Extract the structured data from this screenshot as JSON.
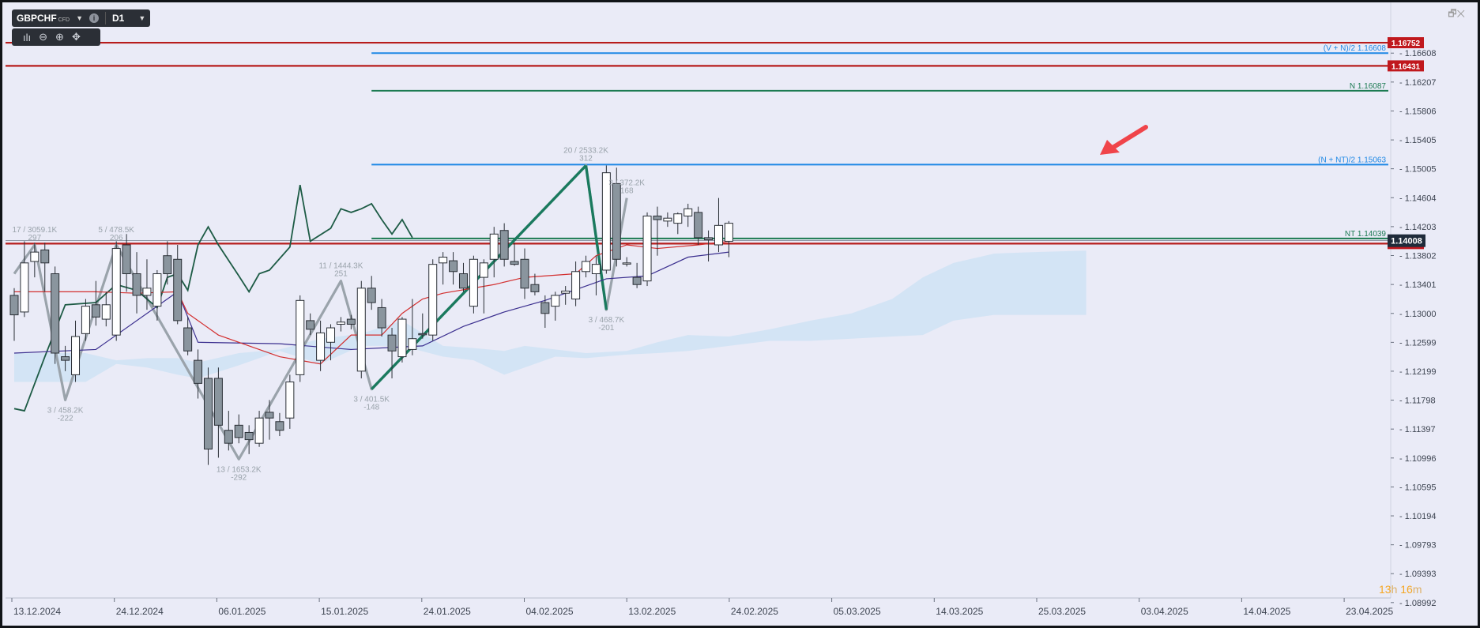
{
  "toolbar": {
    "symbol": "GBPCHF",
    "symbol_sub": "CFD",
    "timeframe": "D1",
    "icons": [
      "chevron-down-icon",
      "info-icon",
      "indicators-icon",
      "zoom-out-icon",
      "zoom-in-icon",
      "crosshair-icon"
    ]
  },
  "window_controls": {
    "icons": [
      "maximize-icon",
      "close-icon"
    ],
    "glyphs": "🗗✕"
  },
  "countdown": {
    "hours": "13",
    "h_unit": "h",
    "minutes": "16",
    "m_unit": "m"
  },
  "colors": {
    "background": "#eaebf7",
    "bull_candle": "#ffffff",
    "bear_candle": "#8a959e",
    "tenkan": "#d32f2f",
    "kijun": "#3b2f8f",
    "chikou": "#1d5b45",
    "zigzag": "#9aa3ab",
    "wave_green": "#1a7a5e",
    "red_level": "#b71c1c",
    "blue_level": "#1e88e5",
    "green_level": "#1b7a52"
  },
  "chart_data": {
    "type": "candlestick",
    "ylim": [
      1.0899,
      1.1695
    ],
    "ticks_y": [
      "1.16608",
      "1.16207",
      "1.15806",
      "1.15405",
      "1.15005",
      "1.14604",
      "1.14203",
      "1.13802",
      "1.13401",
      "1.13000",
      "1.12599",
      "1.12199",
      "1.11798",
      "1.11397",
      "1.10996",
      "1.10595",
      "1.10194",
      "1.09793",
      "1.09393",
      "1.08992"
    ],
    "ticks_x": [
      "13.12.2024",
      "24.12.2024",
      "06.01.2025",
      "15.01.2025",
      "24.01.2025",
      "04.02.2025",
      "13.02.2025",
      "24.02.2025",
      "05.03.2025",
      "14.03.2025",
      "25.03.2025",
      "03.04.2025",
      "14.04.2025",
      "23.04.2025"
    ],
    "candles": [
      [
        1.1325,
        1.1335,
        1.1262,
        1.1298
      ],
      [
        1.1302,
        1.14,
        1.1295,
        1.137
      ],
      [
        1.1372,
        1.1398,
        1.135,
        1.1385
      ],
      [
        1.1388,
        1.1398,
        1.133,
        1.137
      ],
      [
        1.1355,
        1.1365,
        1.123,
        1.1245
      ],
      [
        1.124,
        1.1255,
        1.122,
        1.1235
      ],
      [
        1.1215,
        1.129,
        1.1205,
        1.1268
      ],
      [
        1.1272,
        1.132,
        1.1262,
        1.131
      ],
      [
        1.1312,
        1.1345,
        1.1283,
        1.1295
      ],
      [
        1.1292,
        1.133,
        1.1282,
        1.1312
      ],
      [
        1.127,
        1.14,
        1.1262,
        1.139
      ],
      [
        1.1395,
        1.141,
        1.133,
        1.1355
      ],
      [
        1.1355,
        1.1385,
        1.13,
        1.1325
      ],
      [
        1.1325,
        1.1375,
        1.1305,
        1.1335
      ],
      [
        1.131,
        1.136,
        1.129,
        1.1355
      ],
      [
        1.138,
        1.14,
        1.134,
        1.1355
      ],
      [
        1.1375,
        1.1395,
        1.1285,
        1.129
      ],
      [
        1.128,
        1.1295,
        1.1242,
        1.1248
      ],
      [
        1.1235,
        1.125,
        1.1182,
        1.1203
      ],
      [
        1.121,
        1.1225,
        1.109,
        1.1112
      ],
      [
        1.121,
        1.1225,
        1.11,
        1.1145
      ],
      [
        1.1138,
        1.1165,
        1.111,
        1.112
      ],
      [
        1.1145,
        1.116,
        1.112,
        1.1128
      ],
      [
        1.1135,
        1.1145,
        1.1105,
        1.1125
      ],
      [
        1.112,
        1.1165,
        1.1115,
        1.1155
      ],
      [
        1.1163,
        1.118,
        1.1125,
        1.1155
      ],
      [
        1.115,
        1.1162,
        1.113,
        1.1138
      ],
      [
        1.1155,
        1.1215,
        1.114,
        1.1205
      ],
      [
        1.1215,
        1.1325,
        1.1205,
        1.1318
      ],
      [
        1.129,
        1.13,
        1.127,
        1.1278
      ],
      [
        1.1235,
        1.129,
        1.122,
        1.1273
      ],
      [
        1.126,
        1.1285,
        1.1235,
        1.128
      ],
      [
        1.1285,
        1.1295,
        1.1275,
        1.1288
      ],
      [
        1.1292,
        1.1298,
        1.1278,
        1.1285
      ],
      [
        1.122,
        1.1345,
        1.121,
        1.1335
      ],
      [
        1.1335,
        1.1352,
        1.1305,
        1.1315
      ],
      [
        1.1308,
        1.132,
        1.1268,
        1.128
      ],
      [
        1.127,
        1.128,
        1.121,
        1.1248
      ],
      [
        1.124,
        1.1295,
        1.1232,
        1.1292
      ],
      [
        1.125,
        1.132,
        1.1242,
        1.1265
      ],
      [
        1.1272,
        1.13,
        1.1265,
        1.1271
      ],
      [
        1.127,
        1.1375,
        1.1262,
        1.1368
      ],
      [
        1.137,
        1.1385,
        1.134,
        1.1378
      ],
      [
        1.1373,
        1.1385,
        1.134,
        1.1358
      ],
      [
        1.1355,
        1.137,
        1.133,
        1.1335
      ],
      [
        1.131,
        1.138,
        1.13,
        1.1375
      ],
      [
        1.135,
        1.1375,
        1.13,
        1.137
      ],
      [
        1.1375,
        1.142,
        1.135,
        1.141
      ],
      [
        1.1415,
        1.1425,
        1.1365,
        1.1375
      ],
      [
        1.1372,
        1.1398,
        1.1366,
        1.1368
      ],
      [
        1.1375,
        1.139,
        1.132,
        1.1335
      ],
      [
        1.134,
        1.1355,
        1.1325,
        1.133
      ],
      [
        1.1315,
        1.1325,
        1.128,
        1.13
      ],
      [
        1.131,
        1.133,
        1.129,
        1.1325
      ],
      [
        1.1328,
        1.1338,
        1.1312,
        1.1331
      ],
      [
        1.132,
        1.1372,
        1.131,
        1.1358
      ],
      [
        1.1358,
        1.138,
        1.135,
        1.1372
      ],
      [
        1.1355,
        1.138,
        1.1325,
        1.1368
      ],
      [
        1.136,
        1.1505,
        1.1355,
        1.1495
      ],
      [
        1.148,
        1.1502,
        1.1365,
        1.1375
      ],
      [
        1.137,
        1.1378,
        1.1365,
        1.137
      ],
      [
        1.135,
        1.137,
        1.1335,
        1.134
      ],
      [
        1.1345,
        1.144,
        1.1338,
        1.1435
      ],
      [
        1.1435,
        1.1448,
        1.138,
        1.143
      ],
      [
        1.1428,
        1.144,
        1.142,
        1.1432
      ],
      [
        1.1425,
        1.144,
        1.141,
        1.1438
      ],
      [
        1.1435,
        1.1452,
        1.142,
        1.1445
      ],
      [
        1.144,
        1.1448,
        1.1395,
        1.1405
      ],
      [
        1.1405,
        1.1415,
        1.1372,
        1.1402
      ],
      [
        1.1395,
        1.146,
        1.1385,
        1.1422
      ],
      [
        1.14,
        1.1428,
        1.1378,
        1.1425
      ]
    ],
    "tenkan": [
      [
        0,
        1.133
      ],
      [
        8,
        1.133
      ],
      [
        12,
        1.1328
      ],
      [
        16,
        1.133
      ],
      [
        17,
        1.13
      ],
      [
        20,
        1.127
      ],
      [
        26,
        1.124
      ],
      [
        30,
        1.123
      ],
      [
        33,
        1.127
      ],
      [
        36,
        1.127
      ],
      [
        38,
        1.13
      ],
      [
        40,
        1.132
      ],
      [
        42,
        1.1328
      ],
      [
        47,
        1.134
      ],
      [
        50,
        1.135
      ],
      [
        55,
        1.1355
      ],
      [
        57,
        1.138
      ],
      [
        60,
        1.1395
      ],
      [
        63,
        1.139
      ],
      [
        67,
        1.1395
      ],
      [
        70,
        1.14
      ]
    ],
    "kijun": [
      [
        0,
        1.1245
      ],
      [
        8,
        1.125
      ],
      [
        16,
        1.133
      ],
      [
        18,
        1.126
      ],
      [
        26,
        1.1258
      ],
      [
        33,
        1.125
      ],
      [
        40,
        1.1255
      ],
      [
        44,
        1.1282
      ],
      [
        48,
        1.1302
      ],
      [
        52,
        1.1318
      ],
      [
        58,
        1.1348
      ],
      [
        62,
        1.1352
      ],
      [
        66,
        1.1378
      ],
      [
        70,
        1.1385
      ]
    ],
    "chikou": [
      [
        0,
        1.1168
      ],
      [
        1,
        1.1165
      ],
      [
        3,
        1.124
      ],
      [
        5,
        1.1312
      ],
      [
        8,
        1.1315
      ],
      [
        10,
        1.134
      ],
      [
        12,
        1.1332
      ],
      [
        14,
        1.1308
      ],
      [
        15,
        1.135
      ],
      [
        16,
        1.1355
      ],
      [
        17,
        1.1332
      ],
      [
        18,
        1.1395
      ],
      [
        19,
        1.142
      ],
      [
        20,
        1.1395
      ],
      [
        22,
        1.1352
      ],
      [
        23,
        1.133
      ],
      [
        24,
        1.1355
      ],
      [
        25,
        1.136
      ],
      [
        27,
        1.1392
      ],
      [
        28,
        1.1478
      ],
      [
        29,
        1.14
      ],
      [
        31,
        1.1418
      ],
      [
        32,
        1.1445
      ],
      [
        33,
        1.144
      ],
      [
        34,
        1.1445
      ],
      [
        35,
        1.1452
      ],
      [
        36,
        1.143
      ],
      [
        37,
        1.141
      ],
      [
        38,
        1.143
      ],
      [
        39,
        1.1405
      ]
    ],
    "cloud": [
      [
        0,
        1.1245,
        1.1205
      ],
      [
        7,
        1.1245,
        1.1205
      ],
      [
        10,
        1.1235,
        1.123
      ],
      [
        13,
        1.1238,
        1.1225
      ],
      [
        16,
        1.1238,
        1.1215
      ],
      [
        18,
        1.1232,
        1.121
      ],
      [
        22,
        1.1228,
        1.1245
      ],
      [
        26,
        1.125,
        1.1248
      ],
      [
        30,
        1.1265,
        1.123
      ],
      [
        34,
        1.1272,
        1.1255
      ],
      [
        38,
        1.129,
        1.1255
      ],
      [
        42,
        1.1255,
        1.124
      ],
      [
        45,
        1.1252,
        1.1235
      ],
      [
        48,
        1.1248,
        1.1215
      ],
      [
        50,
        1.1255,
        1.1225
      ],
      [
        53,
        1.125,
        1.124
      ],
      [
        56,
        1.1245,
        1.1238
      ],
      [
        60,
        1.1248,
        1.1243
      ],
      [
        63,
        1.126,
        1.1245
      ],
      [
        66,
        1.127,
        1.1248
      ],
      [
        70,
        1.1268,
        1.1255
      ],
      [
        74,
        1.1278,
        1.1262
      ],
      [
        78,
        1.129,
        1.1262
      ],
      [
        82,
        1.13,
        1.1265
      ],
      [
        86,
        1.132,
        1.1268
      ],
      [
        89,
        1.135,
        1.127
      ],
      [
        92,
        1.137,
        1.129
      ],
      [
        96,
        1.1383,
        1.1298
      ],
      [
        100,
        1.1385,
        1.1298
      ],
      [
        105,
        1.1387,
        1.1298
      ]
    ],
    "zigzag": [
      [
        0,
        1.1355
      ],
      [
        2,
        1.1395
      ],
      [
        5,
        1.118
      ],
      [
        10,
        1.1395
      ],
      [
        22,
        1.1098
      ],
      [
        32,
        1.1345
      ],
      [
        35,
        1.1195
      ],
      [
        56,
        1.1505
      ],
      [
        58,
        1.1305
      ],
      [
        60,
        1.146
      ]
    ],
    "zigzag_labels": [
      {
        "i": 2,
        "p": 1.1395,
        "text1": "17 / 3059.1K",
        "text2": "297",
        "pos": "above"
      },
      {
        "i": 5,
        "p": 1.118,
        "text1": "3 / 458.2K",
        "text2": "-222",
        "pos": "below"
      },
      {
        "i": 10,
        "p": 1.1395,
        "text1": "5 / 478.5K",
        "text2": "206",
        "pos": "above"
      },
      {
        "i": 22,
        "p": 1.1098,
        "text1": "13 / 1653.2K",
        "text2": "-292",
        "pos": "below"
      },
      {
        "i": 32,
        "p": 1.1345,
        "text1": "11 / 1444.3K",
        "text2": "251",
        "pos": "above"
      },
      {
        "i": 35,
        "p": 1.1195,
        "text1": "3 / 401.5K",
        "text2": "-148",
        "pos": "below"
      },
      {
        "i": 56,
        "p": 1.1505,
        "text1": "20 / 2533.2K",
        "text2": "312",
        "pos": "above"
      },
      {
        "i": 58,
        "p": 1.1305,
        "text1": "3 / 468.7K",
        "text2": "-201",
        "pos": "below"
      },
      {
        "i": 60,
        "p": 1.146,
        "text1": "3 / 372.2K",
        "text2": "168",
        "pos": "above"
      }
    ],
    "wave_lines": [
      [
        35,
        1.1195,
        56,
        1.1505
      ],
      [
        56,
        1.1505,
        58,
        1.1305
      ]
    ],
    "levels": [
      {
        "price": 1.16752,
        "type": "red",
        "label": "1.16752",
        "from": "start"
      },
      {
        "price": 1.16608,
        "type": "blue",
        "label": "(V + N)/2 1.16608",
        "from": 35
      },
      {
        "price": 1.16431,
        "type": "red",
        "label": "1.16431",
        "from": "start"
      },
      {
        "price": 1.16087,
        "type": "green",
        "label": "N 1.16087",
        "from": 35
      },
      {
        "price": 1.15063,
        "type": "blue",
        "label": "(N + NT)/2 1.15063",
        "from": 35
      },
      {
        "price": 1.14039,
        "type": "green",
        "label": "NT 1.14039",
        "from": 35
      },
      {
        "price": 1.13968,
        "type": "red",
        "label": "1.13968",
        "from": "start"
      }
    ],
    "last_price": {
      "price": 1.14008,
      "label": "1.14008"
    }
  }
}
